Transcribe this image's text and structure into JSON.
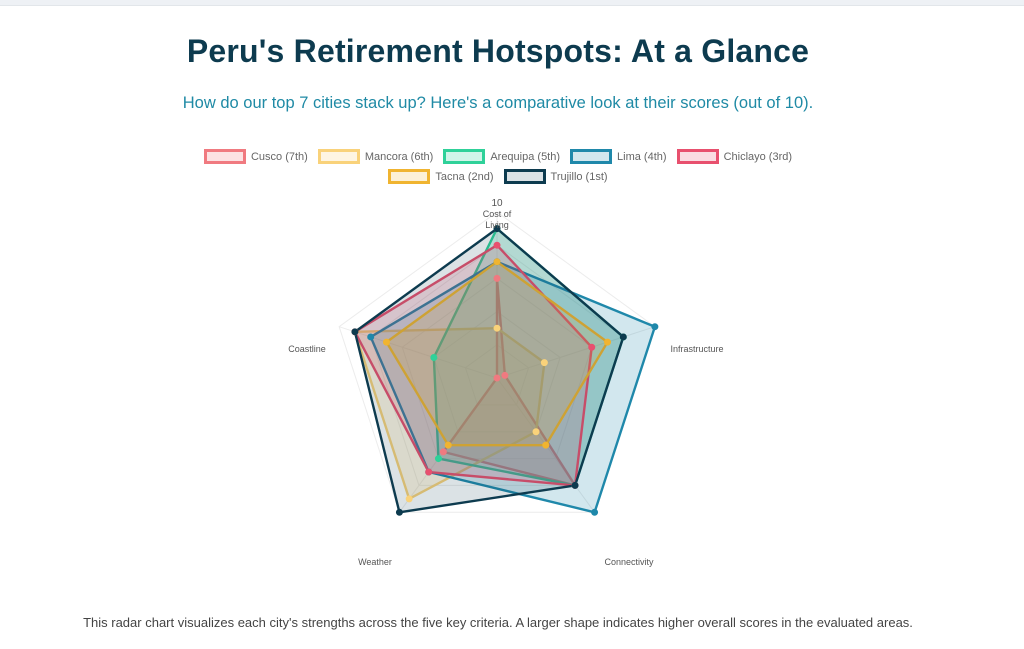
{
  "header": {
    "title": "Peru's Retirement Hotspots: At a Glance",
    "subtitle": "How do our top 7 cities stack up? Here's a comparative look at their scores (out of 10)."
  },
  "caption": "This radar chart visualizes each city's strengths across the five key criteria. A larger shape indicates higher overall scores in the evaluated areas.",
  "chart_data": {
    "type": "radar",
    "categories": [
      [
        "Cost of",
        "Living"
      ],
      [
        "Infrastructure"
      ],
      [
        "Connectivity"
      ],
      [
        "Weather"
      ],
      [
        "Coastline"
      ]
    ],
    "range": [
      0,
      10
    ],
    "tick_labels": [
      "10"
    ],
    "legend_position": "top",
    "series": [
      {
        "name": "Cusco (7th)",
        "color": "#f07a80",
        "fill": "rgba(240,122,128,0.22)",
        "values": [
          6,
          0.5,
          8,
          5.5,
          0
        ]
      },
      {
        "name": "Mancora (6th)",
        "color": "#f9d27a",
        "fill": "rgba(249,210,122,0.22)",
        "values": [
          3,
          3,
          4,
          9,
          9
        ]
      },
      {
        "name": "Arequipa (5th)",
        "color": "#2fd199",
        "fill": "rgba(47,209,153,0.22)",
        "values": [
          9,
          8,
          8,
          6,
          4
        ]
      },
      {
        "name": "Lima (4th)",
        "color": "#1f88aa",
        "fill": "rgba(31,136,170,0.2)",
        "values": [
          7,
          10,
          10,
          7,
          8
        ]
      },
      {
        "name": "Chiclayo (3rd)",
        "color": "#e8506e",
        "fill": "rgba(232,80,110,0.2)",
        "values": [
          8,
          6,
          8,
          7,
          9
        ]
      },
      {
        "name": "Tacna (2nd)",
        "color": "#f0b430",
        "fill": "rgba(240,180,48,0.2)",
        "values": [
          7,
          7,
          5,
          5,
          7
        ]
      },
      {
        "name": "Trujillo (1st)",
        "color": "#0d3b4f",
        "fill": "rgba(13,59,79,0.15)",
        "values": [
          9,
          8,
          8,
          10,
          9
        ]
      }
    ]
  }
}
